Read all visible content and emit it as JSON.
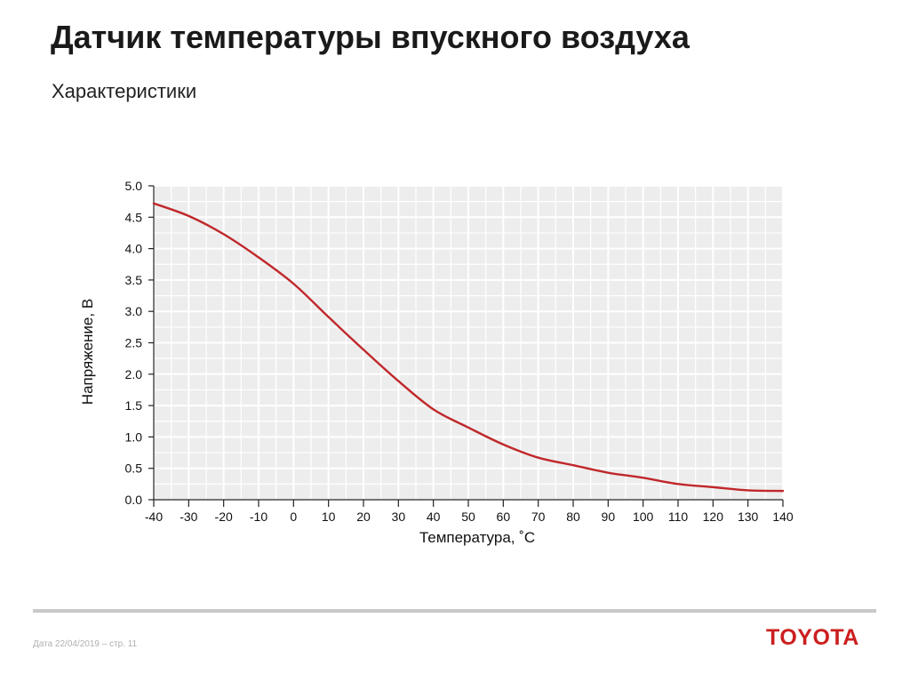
{
  "header": {
    "title": "Датчик температуры впускного воздуха",
    "subtitle": "Характеристики"
  },
  "chart_data": {
    "type": "line",
    "title": "",
    "xlabel": "Температура, ˚С",
    "ylabel": "Напряжение, В",
    "xlim": [
      -40,
      140
    ],
    "ylim": [
      0,
      5
    ],
    "x_ticks": [
      -40,
      -30,
      -20,
      -10,
      0,
      10,
      20,
      30,
      40,
      50,
      60,
      70,
      80,
      90,
      100,
      110,
      120,
      130,
      140
    ],
    "x_tick_labels": [
      "-40",
      "-30",
      "-20",
      "-10",
      "0",
      "10",
      "20",
      "30",
      "40",
      "50",
      "60",
      "70",
      "80",
      "90",
      "100",
      "110",
      "120",
      "130",
      "140"
    ],
    "y_ticks": [
      0,
      0.5,
      1,
      1.5,
      2,
      2.5,
      3,
      3.5,
      4,
      4.5,
      5
    ],
    "y_tick_labels": [
      "0.0",
      "0.5",
      "1.0",
      "1.5",
      "2.0",
      "2.5",
      "3.0",
      "3.5",
      "4.0",
      "4.5",
      "5.0"
    ],
    "grid": true,
    "series": [
      {
        "x": [
          -40,
          -30,
          -20,
          -10,
          0,
          10,
          20,
          30,
          40,
          50,
          60,
          70,
          80,
          90,
          100,
          110,
          120,
          130,
          140
        ],
        "y": [
          4.72,
          4.52,
          4.23,
          3.86,
          3.44,
          2.91,
          2.39,
          1.89,
          1.44,
          1.15,
          0.88,
          0.67,
          0.55,
          0.43,
          0.35,
          0.25,
          0.2,
          0.15,
          0.14
        ],
        "color": "#c0282b"
      }
    ],
    "plot_background": "#ededed",
    "grid_color": "#ffffff"
  },
  "footer": {
    "text": "Дата 22/04/2019 – стр. 11",
    "brand": "TOYOTA",
    "brand_color": "#cc1f1f"
  }
}
